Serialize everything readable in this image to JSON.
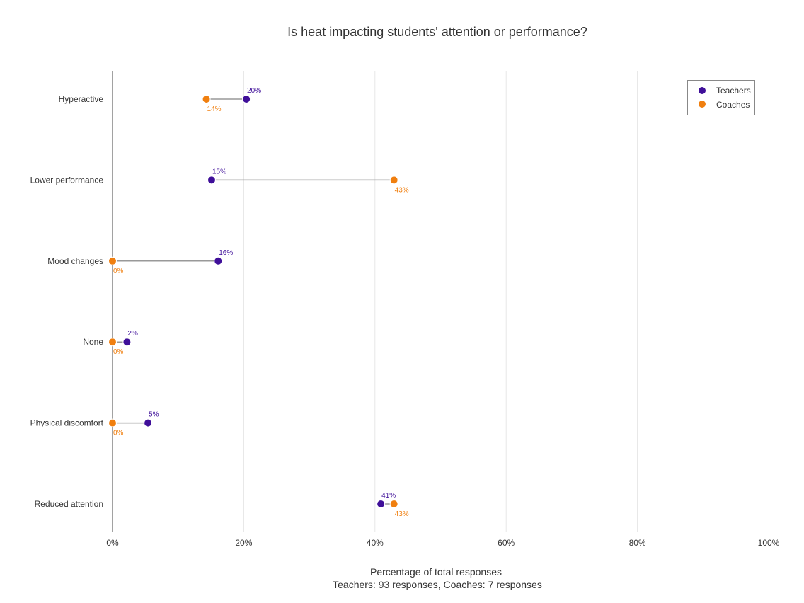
{
  "chart_data": {
    "type": "dumbbell",
    "title": "Is heat impacting students' attention or performance?",
    "xlabel": "Percentage of total responses",
    "xlabel_sub": "Teachers: 93 responses, Coaches: 7 responses",
    "xlim": [
      0,
      100
    ],
    "xticks": [
      0,
      20,
      40,
      60,
      80,
      100
    ],
    "xtick_labels": [
      "0%",
      "20%",
      "40%",
      "60%",
      "80%",
      "100%"
    ],
    "categories": [
      "Hyperactive",
      "Lower performance",
      "Mood changes",
      "None",
      "Physical discomfort",
      "Reduced attention"
    ],
    "series": [
      {
        "name": "Teachers",
        "color": "#3f0f99",
        "values": [
          20.4,
          15.1,
          16.1,
          2.2,
          5.4,
          40.9
        ],
        "labels": [
          "20%",
          "15%",
          "16%",
          "2%",
          "5%",
          "41%"
        ]
      },
      {
        "name": "Coaches",
        "color": "#f07f0f",
        "values": [
          14.3,
          42.9,
          0,
          0,
          0,
          42.9
        ],
        "labels": [
          "14%",
          "43%",
          "0%",
          "0%",
          "0%",
          "43%"
        ]
      }
    ],
    "connector_color": "#999999",
    "legend_position": "top-right"
  }
}
